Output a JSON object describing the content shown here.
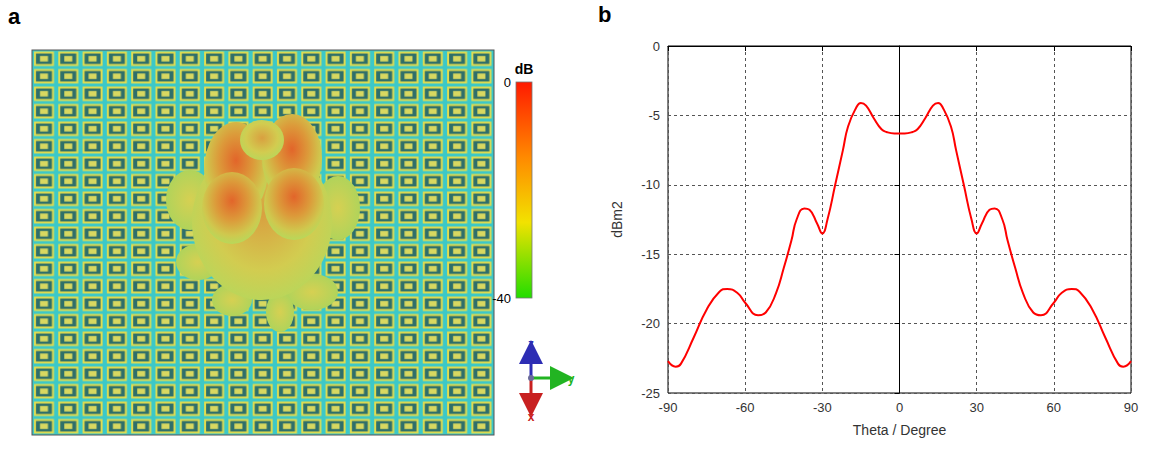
{
  "chart_data": {
    "type": "line",
    "panel": "b",
    "x_label": "Theta / Degree",
    "y_label": "dBm2",
    "x": [
      -90,
      -87,
      -85,
      -80,
      -75,
      -70,
      -67,
      -63,
      -60,
      -55,
      -52,
      -48,
      -45,
      -42,
      -40,
      -37,
      -35,
      -32,
      -30,
      -28,
      -25,
      -22,
      -20,
      -17,
      -15,
      -13,
      -10,
      -7,
      -5,
      -2,
      0,
      2,
      5,
      7,
      10,
      13,
      15,
      17,
      20,
      22,
      25,
      28,
      30,
      32,
      35,
      37,
      40,
      42,
      45,
      48,
      52,
      55,
      60,
      63,
      67,
      70,
      75,
      80,
      85,
      87,
      90
    ],
    "values": [
      -22.7,
      -23.1,
      -22.9,
      -21.0,
      -19.0,
      -17.7,
      -17.5,
      -17.8,
      -18.5,
      -19.4,
      -19.2,
      -17.8,
      -16.0,
      -14.0,
      -12.5,
      -11.7,
      -11.8,
      -12.8,
      -13.5,
      -12.5,
      -10.0,
      -7.5,
      -5.8,
      -4.5,
      -4.1,
      -4.3,
      -5.2,
      -6.0,
      -6.2,
      -6.3,
      -6.3,
      -6.3,
      -6.2,
      -6.0,
      -5.2,
      -4.3,
      -4.1,
      -4.5,
      -5.8,
      -7.5,
      -10.0,
      -12.5,
      -13.5,
      -12.8,
      -11.8,
      -11.7,
      -12.5,
      -14.0,
      -16.0,
      -17.8,
      -19.2,
      -19.4,
      -18.5,
      -17.8,
      -17.5,
      -17.7,
      -19.0,
      -21.0,
      -22.9,
      -23.1,
      -22.7
    ],
    "color": "#ff0000",
    "xlim": [
      -90,
      90
    ],
    "xticks": [
      -90,
      -60,
      -30,
      0,
      30,
      60,
      90
    ],
    "ylim": [
      -25,
      0
    ],
    "yticks": [
      -25,
      -20,
      -15,
      -10,
      -5,
      0
    ],
    "grid": true
  },
  "image_panel": {
    "panel": "a",
    "colorbar": {
      "title": "dB",
      "range": [
        0,
        -40
      ],
      "ticks": [
        0,
        -40
      ]
    },
    "axes_labels": [
      "z",
      "y",
      "x"
    ]
  }
}
